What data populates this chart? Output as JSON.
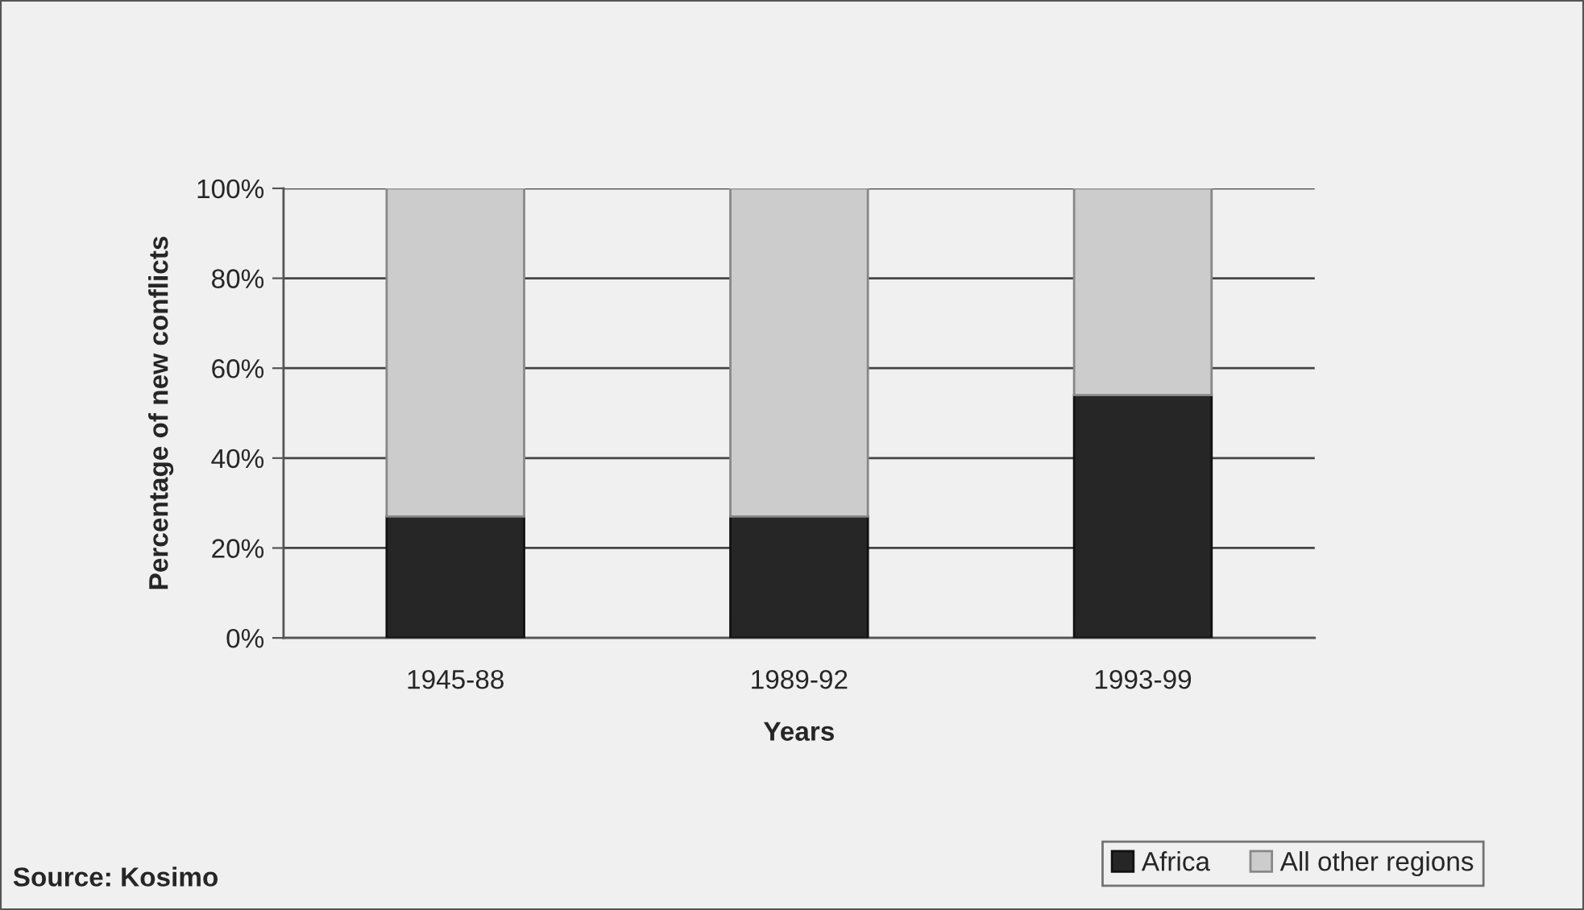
{
  "chart_data": {
    "type": "bar",
    "stacked": true,
    "categories": [
      "1945-88",
      "1989-92",
      "1993-99"
    ],
    "series": [
      {
        "name": "Africa",
        "color": "#262626",
        "values": [
          27,
          27,
          54
        ]
      },
      {
        "name": "All other regions",
        "color": "#cccccc",
        "values": [
          73,
          73,
          46
        ]
      }
    ],
    "xlabel": "Years",
    "ylabel": "Percentage of new conflicts",
    "ylim": [
      0,
      100
    ],
    "yticks": [
      {
        "value": 0,
        "label": "0%"
      },
      {
        "value": 20,
        "label": "20%"
      },
      {
        "value": 40,
        "label": "40%"
      },
      {
        "value": 60,
        "label": "60%"
      },
      {
        "value": 80,
        "label": "80%"
      },
      {
        "value": 100,
        "label": "100%"
      }
    ],
    "grid": "y",
    "legend": "bottom right",
    "annotations": [
      "Source: Kosimo"
    ]
  }
}
